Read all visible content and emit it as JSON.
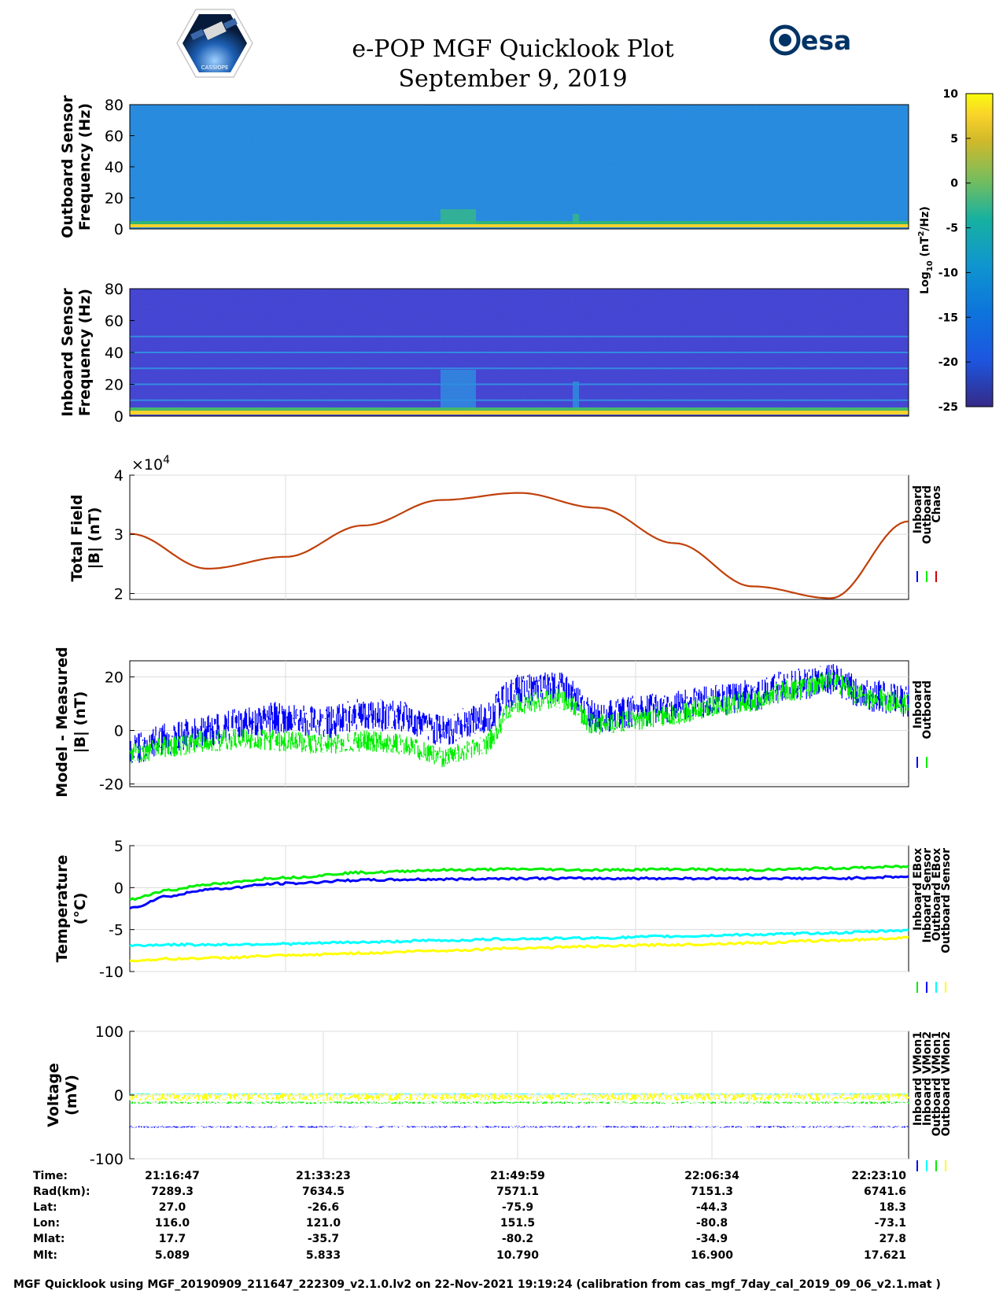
{
  "header": {
    "title": "e-POP MGF Quicklook Plot",
    "date": "September 9, 2019",
    "left_logo_icon": "cassiope-mission-logo",
    "left_logo_text": "CASSIOPE",
    "right_logo_icon": "esa-logo",
    "right_logo_text": "esa"
  },
  "colors": {
    "blue": "#0000ff",
    "green": "#00ee00",
    "red": "#d40000",
    "cyan": "#00ffff",
    "yellow": "#ffff00",
    "model": "#c0400a"
  },
  "chart_data": [
    {
      "type": "heatmap",
      "name": "outboard-spectrogram",
      "ylabel": [
        "Outboard Sensor",
        "Frequency (Hz)"
      ],
      "ylim": [
        0,
        80
      ],
      "yticks": [
        "0",
        "20",
        "40",
        "60",
        "80"
      ]
    },
    {
      "type": "heatmap",
      "name": "inboard-spectrogram",
      "ylabel": [
        "Inboard Sensor",
        "Frequency (Hz)"
      ],
      "ylim": [
        0,
        80
      ],
      "yticks": [
        "0",
        "20",
        "40",
        "60",
        "80"
      ],
      "harmonic_lines_hz": [
        5,
        10,
        20,
        30,
        40,
        50
      ]
    },
    {
      "type": "colorbar",
      "label": "Log10 (nT²/Hz)",
      "label_parts": [
        "Log",
        "10",
        " (nT",
        "2",
        "/Hz)"
      ],
      "clim": [
        -25,
        10
      ],
      "ticks": [
        "10",
        "5",
        "0",
        "-5",
        "-10",
        "-15",
        "-20",
        "-25"
      ]
    },
    {
      "type": "line",
      "name": "total-field",
      "ylabel": [
        "Total Field",
        "|B| (nT)"
      ],
      "exponent_label": "×10",
      "exponent": "4",
      "ylim": [
        1.9,
        4.0
      ],
      "yticks": [
        "2",
        "3",
        "4"
      ],
      "x": [
        0,
        0.1,
        0.2,
        0.3,
        0.4,
        0.5,
        0.6,
        0.7,
        0.8,
        0.9,
        1.0
      ],
      "series": [
        {
          "name": "Chaos",
          "values": [
            3.01,
            2.42,
            2.62,
            3.15,
            3.58,
            3.7,
            3.45,
            2.85,
            2.12,
            1.92,
            3.22
          ]
        }
      ],
      "legend": [
        "Inboard",
        "Outboard",
        "Chaos"
      ]
    },
    {
      "type": "line",
      "name": "model-minus-measured",
      "ylabel": [
        "Model - Measured",
        "|B| (nT)"
      ],
      "ylim": [
        -21,
        26
      ],
      "yticks": [
        "-20",
        "0",
        "20"
      ],
      "x": [
        0,
        0.05,
        0.1,
        0.15,
        0.2,
        0.25,
        0.3,
        0.35,
        0.4,
        0.45,
        0.5,
        0.55,
        0.6,
        0.65,
        0.7,
        0.75,
        0.8,
        0.85,
        0.9,
        0.95,
        1.0
      ],
      "series": [
        {
          "name": "Inboard",
          "values": [
            -7,
            -3,
            0,
            3,
            5,
            3,
            6,
            5,
            0,
            4,
            15,
            16,
            5,
            7,
            9,
            11,
            13,
            17,
            19,
            13,
            11
          ],
          "band": 6
        },
        {
          "name": "Outboard",
          "values": [
            -9,
            -6,
            -4,
            -3,
            -4,
            -5,
            -4,
            -5,
            -10,
            -6,
            10,
            12,
            2,
            4,
            6,
            9,
            11,
            15,
            18,
            12,
            10
          ],
          "band": 4
        }
      ],
      "legend": [
        "Inboard",
        "Outboard"
      ]
    },
    {
      "type": "line",
      "name": "temperature",
      "ylabel": [
        "Temperature",
        "(°C)"
      ],
      "ylim": [
        -10,
        5
      ],
      "yticks": [
        "-10",
        "-5",
        "0",
        "5"
      ],
      "x": [
        0,
        0.05,
        0.1,
        0.2,
        0.3,
        0.4,
        0.5,
        0.6,
        0.7,
        0.8,
        0.9,
        1.0
      ],
      "series": [
        {
          "name": "Inboard EBox",
          "values": [
            -1.4,
            -0.3,
            0.4,
            1.2,
            1.8,
            2.1,
            2.2,
            2.1,
            2.2,
            2.1,
            2.3,
            2.5
          ]
        },
        {
          "name": "Inboard Sensor",
          "values": [
            -2.4,
            -1.0,
            -0.2,
            0.5,
            0.9,
            1.0,
            1.1,
            1.1,
            1.1,
            1.1,
            1.1,
            1.3
          ]
        },
        {
          "name": "Outboard EBox",
          "values": [
            -6.9,
            -6.8,
            -6.8,
            -6.7,
            -6.5,
            -6.3,
            -6.1,
            -6.0,
            -5.8,
            -5.6,
            -5.4,
            -5.1
          ]
        },
        {
          "name": "Outboard Sensor",
          "values": [
            -8.7,
            -8.5,
            -8.4,
            -8.1,
            -7.8,
            -7.5,
            -7.2,
            -7.0,
            -6.8,
            -6.6,
            -6.3,
            -6.0
          ]
        }
      ],
      "legend": [
        "Inboard EBox",
        "Inboard Sensor",
        "Outboard EBox",
        "Outboard Sensor"
      ]
    },
    {
      "type": "line",
      "name": "voltage",
      "ylabel": [
        "Voltage",
        "(mV)"
      ],
      "ylim": [
        -100,
        100
      ],
      "yticks": [
        "-100",
        "0",
        "100"
      ],
      "x": [
        0,
        1
      ],
      "series": [
        {
          "name": "Inboard VMon1",
          "values": [
            -50,
            -50
          ],
          "band": 3
        },
        {
          "name": "Inboard VMon2",
          "values": [
            2,
            2
          ],
          "band": 2
        },
        {
          "name": "Outboard VMon1",
          "values": [
            -12,
            -12
          ],
          "band": 4
        },
        {
          "name": "Outboard VMon2",
          "values": [
            -3,
            -3
          ],
          "band": 12
        }
      ],
      "legend": [
        "Inboard VMon1",
        "Inboard VMon2",
        "Outboard VMon1",
        "Outboard VMon2"
      ]
    }
  ],
  "orbit_table": {
    "row_labels": [
      "Time:",
      "Rad(km):",
      "Lat:",
      "Lon:",
      "Mlat:",
      "Mlt:"
    ],
    "columns": [
      [
        "21:16:47",
        "7289.3",
        "27.0",
        "116.0",
        "17.7",
        "5.089"
      ],
      [
        "21:33:23",
        "7634.5",
        "-26.6",
        "121.0",
        "-35.7",
        "5.833"
      ],
      [
        "21:49:59",
        "7571.1",
        "-75.9",
        "151.5",
        "-80.2",
        "10.790"
      ],
      [
        "22:06:34",
        "7151.3",
        "-44.3",
        "-80.8",
        "-34.9",
        "16.900"
      ],
      [
        "22:23:10",
        "6741.6",
        "18.3",
        "-73.1",
        "27.8",
        "17.621"
      ]
    ]
  },
  "footer": "MGF Quicklook using MGF_20190909_211647_222309_v2.1.0.lv2 on 22-Nov-2021 19:19:24 (calibration from cas_mgf_7day_cal_2019_09_06_v2.1.mat )"
}
